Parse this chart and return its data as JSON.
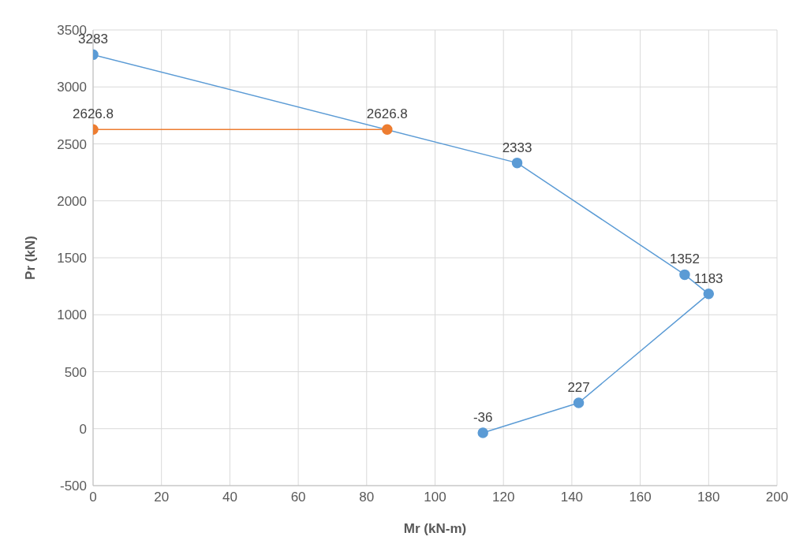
{
  "chart_data": {
    "type": "line",
    "xlabel": "Mr (kN-m)",
    "ylabel": "Pr (kN)",
    "series": [
      {
        "color": "#5b9bd5",
        "x": [
          0,
          124,
          173,
          180,
          142,
          114
        ],
        "values": [
          3283,
          2333,
          1352,
          1183,
          227,
          -36
        ]
      },
      {
        "color": "#ed7d31",
        "x": [
          0,
          86
        ],
        "values": [
          2626.8,
          2626.8
        ]
      }
    ],
    "xlim": [
      0,
      200
    ],
    "xticks": [
      0,
      20,
      40,
      60,
      80,
      100,
      120,
      140,
      160,
      180,
      200
    ],
    "ylim": [
      -500,
      3500
    ],
    "yticks": [
      -500,
      0,
      500,
      1000,
      1500,
      2000,
      2500,
      3000,
      3500
    ],
    "grid": true,
    "marker": "circle",
    "line_style": "solid",
    "data_labels": true
  }
}
